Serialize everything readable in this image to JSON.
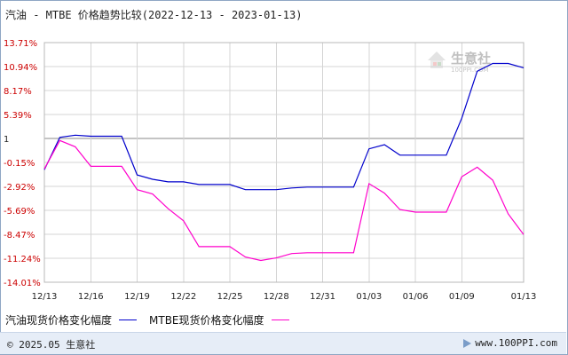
{
  "title": "汽油 - MTBE 价格趋势比较(2022-12-13 - 2023-01-13)",
  "watermark": {
    "brand": "生意社",
    "sub": "100PPI.COM"
  },
  "footer": {
    "copyright": "© 2025.05 生意社",
    "site": "www.100PPI.com"
  },
  "chart_data": {
    "type": "line",
    "x_ticks": [
      "12/13",
      "12/16",
      "12/19",
      "12/22",
      "12/25",
      "12/28",
      "12/31",
      "01/03",
      "01/06",
      "01/09",
      "01/13"
    ],
    "y_ticks": [
      "13.71%",
      "10.94%",
      "8.17%",
      "5.39%",
      "1",
      "-0.15%",
      "-2.92%",
      "-5.69%",
      "-8.47%",
      "-11.24%",
      "-14.01%"
    ],
    "y_tick_values": [
      13.71,
      10.94,
      8.17,
      5.39,
      1,
      -0.15,
      -2.92,
      -5.69,
      -8.47,
      -11.24,
      -14.01
    ],
    "ylim": [
      -14.01,
      13.71
    ],
    "grid": true,
    "colors": {
      "positive_tick": "#cc0000",
      "negative_tick": "#cc0000",
      "zero_tick": "#222222",
      "grid": "#d4d4d4",
      "baseline": "#888888"
    },
    "series": [
      {
        "name": "汽油现货价格变化幅度",
        "color": "#0000cc",
        "x": [
          "2022-12-13",
          "2022-12-14",
          "2022-12-15",
          "2022-12-16",
          "2022-12-17",
          "2022-12-18",
          "2022-12-19",
          "2022-12-20",
          "2022-12-21",
          "2022-12-22",
          "2022-12-23",
          "2022-12-24",
          "2022-12-25",
          "2022-12-26",
          "2022-12-27",
          "2022-12-28",
          "2022-12-29",
          "2022-12-30",
          "2022-12-31",
          "2023-01-01",
          "2023-01-02",
          "2023-01-03",
          "2023-01-04",
          "2023-01-05",
          "2023-01-06",
          "2023-01-07",
          "2023-01-08",
          "2023-01-09",
          "2023-01-10",
          "2023-01-11",
          "2023-01-12",
          "2023-01-13"
        ],
        "values": [
          -1.0,
          1.2,
          1.6,
          1.4,
          1.4,
          1.4,
          -1.6,
          -2.1,
          -2.4,
          -2.4,
          -2.7,
          -2.7,
          -2.7,
          -3.3,
          -3.3,
          -3.3,
          -3.1,
          -3.0,
          -3.0,
          -3.0,
          -3.0,
          0.5,
          0.7,
          0.2,
          0.2,
          0.2,
          0.2,
          4.7,
          10.4,
          11.3,
          11.3,
          10.8
        ]
      },
      {
        "name": "MTBE现货价格变化幅度",
        "color": "#ff00cc",
        "x": [
          "2022-12-13",
          "2022-12-14",
          "2022-12-15",
          "2022-12-16",
          "2022-12-17",
          "2022-12-18",
          "2022-12-19",
          "2022-12-20",
          "2022-12-21",
          "2022-12-22",
          "2022-12-23",
          "2022-12-24",
          "2022-12-25",
          "2022-12-26",
          "2022-12-27",
          "2022-12-28",
          "2022-12-29",
          "2022-12-30",
          "2022-12-31",
          "2023-01-01",
          "2023-01-02",
          "2023-01-03",
          "2023-01-04",
          "2023-01-05",
          "2023-01-06",
          "2023-01-07",
          "2023-01-08",
          "2023-01-09",
          "2023-01-10",
          "2023-01-11",
          "2023-01-12",
          "2023-01-13"
        ],
        "values": [
          -0.9,
          0.9,
          0.6,
          -0.6,
          -0.6,
          -0.6,
          -3.3,
          -3.8,
          -5.5,
          -6.9,
          -9.9,
          -9.9,
          -9.9,
          -11.1,
          -11.5,
          -11.2,
          -10.7,
          -10.6,
          -10.6,
          -10.6,
          -10.6,
          -2.6,
          -3.7,
          -5.6,
          -5.9,
          -5.9,
          -5.9,
          -1.8,
          -0.7,
          -2.2,
          -6.1,
          -8.5
        ]
      }
    ]
  }
}
